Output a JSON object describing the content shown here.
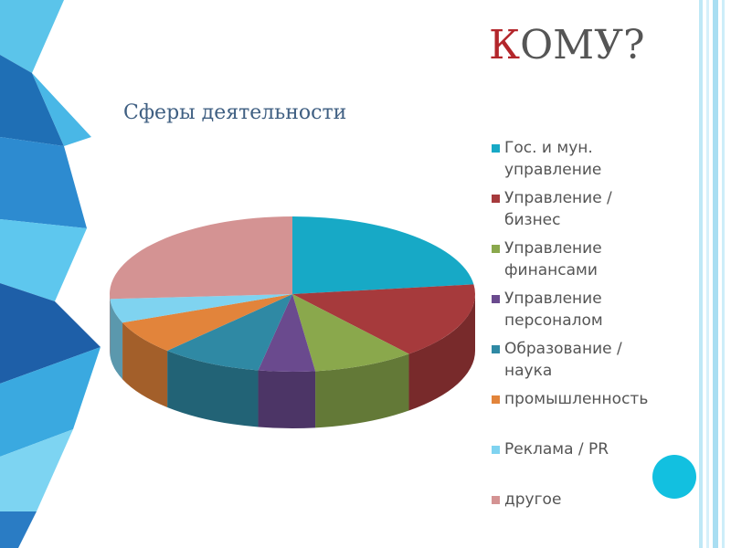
{
  "header": {
    "title_initial": "К",
    "title_rest": "ОМУ?"
  },
  "chart_data": {
    "type": "pie",
    "title": "Сферы деятельности",
    "categories": [
      "Гос. и мун. управление",
      "Управление / бизнес",
      "Управление финансами",
      "Управление персоналом",
      "Образование / наука",
      "промышленность",
      "Реклама / PR",
      "другое"
    ],
    "values": [
      23,
      16,
      9,
      5,
      9,
      7,
      5,
      26
    ],
    "colors": [
      "#17a9c6",
      "#a63a3c",
      "#8aa84c",
      "#6a4a8e",
      "#2f89a4",
      "#e2843b",
      "#7fd3f0",
      "#d49393"
    ],
    "legend": "right"
  }
}
